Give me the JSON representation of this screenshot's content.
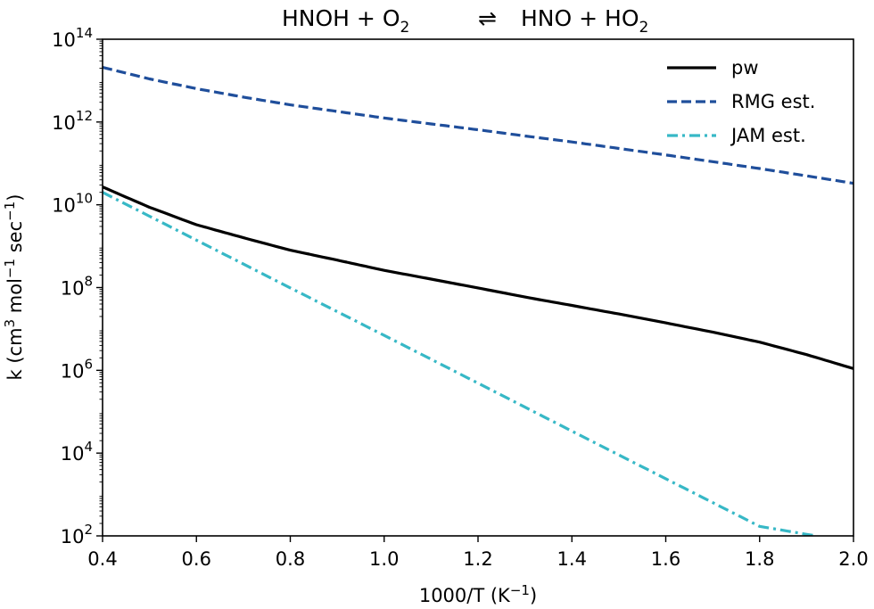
{
  "chart_data": {
    "type": "line",
    "title": {
      "lhs_a": "HNOH + O",
      "lhs_a_sub": "2",
      "arrow": "⇌",
      "rhs_a": "HNO + HO",
      "rhs_a_sub": "2"
    },
    "xlabel": {
      "main": "1000/T (K",
      "sup": "−1",
      "close": ")"
    },
    "ylabel": {
      "p1": "k (cm",
      "s1": "3",
      "p2": " mol",
      "s2": "−1",
      "p3": " sec",
      "s3": "−1",
      "p4": ")"
    },
    "xlim": [
      0.4,
      2.0
    ],
    "ylim": [
      100,
      100000000000000
    ],
    "yscale": "log",
    "x_ticks": [
      0.4,
      0.6,
      0.8,
      1.0,
      1.2,
      1.4,
      1.6,
      1.8,
      2.0
    ],
    "x_tick_labels": [
      "0.4",
      "0.6",
      "0.8",
      "1.0",
      "1.2",
      "1.4",
      "1.6",
      "1.8",
      "2.0"
    ],
    "y_ticks": [
      {
        "value": 100,
        "base": "10",
        "exp": "2"
      },
      {
        "value": 10000,
        "base": "10",
        "exp": "4"
      },
      {
        "value": 1000000,
        "base": "10",
        "exp": "6"
      },
      {
        "value": 100000000,
        "base": "10",
        "exp": "8"
      },
      {
        "value": 10000000000,
        "base": "10",
        "exp": "10"
      },
      {
        "value": 1000000000000,
        "base": "10",
        "exp": "12"
      },
      {
        "value": 100000000000000,
        "base": "10",
        "exp": "14"
      }
    ],
    "grid": false,
    "legend_position": "top-right",
    "series": [
      {
        "name": "pw",
        "color": "#000000",
        "dash": "solid",
        "x": [
          0.4,
          0.5,
          0.6,
          0.7,
          0.8,
          0.9,
          1.0,
          1.1,
          1.2,
          1.3,
          1.4,
          1.5,
          1.6,
          1.7,
          1.8,
          1.9,
          2.0
        ],
        "y": [
          27000000000.0,
          8700000000.0,
          3300000000.0,
          1600000000.0,
          800000000.0,
          460000000.0,
          260000000.0,
          160000000.0,
          98000000.0,
          59000000.0,
          37000000.0,
          23000000.0,
          14000000.0,
          8400000.0,
          4800000.0,
          2400000.0,
          1100000.0
        ]
      },
      {
        "name": "RMG est.",
        "color": "#1f4e9b",
        "dash": "dashed",
        "x": [
          0.4,
          0.5,
          0.6,
          0.7,
          0.8,
          0.9,
          1.0,
          1.1,
          1.2,
          1.3,
          1.4,
          1.5,
          1.6,
          1.7,
          1.8,
          1.9,
          2.0
        ],
        "y": [
          21000000000000.0,
          11000000000000.0,
          6400000000000.0,
          4000000000000.0,
          2600000000000.0,
          1800000000000.0,
          1250000000000.0,
          900000000000.0,
          650000000000.0,
          460000000000.0,
          330000000000.0,
          230000000000.0,
          160000000000.0,
          110000000000.0,
          75000000000.0,
          50000000000.0,
          33000000000.0
        ]
      },
      {
        "name": "JAM est.",
        "color": "#37b8c6",
        "dash": "dash-dot",
        "x": [
          0.4,
          0.6,
          0.8,
          1.0,
          1.2,
          1.4,
          1.6,
          1.8,
          1.92
        ],
        "y": [
          20000000000.0,
          1400000000.0,
          98000000.0,
          7000000.0,
          490000.0,
          34000.0,
          2400.0,
          170.0,
          100.0
        ]
      }
    ]
  }
}
